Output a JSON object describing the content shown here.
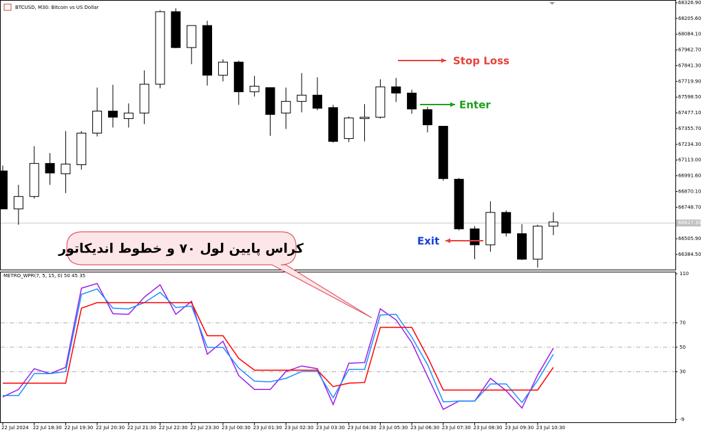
{
  "chart_data": [
    {
      "type": "candlestick",
      "title": "BTCUSD, M30:  Bitcoin vs US Dollar",
      "categories": [
        "22 Jul 2024",
        null,
        "22 Jul 18:30",
        null,
        "22 Jul 19:30",
        null,
        "22 Jul 20:30",
        null,
        "22 Jul 21:30",
        null,
        "22 Jul 22:30",
        null,
        "22 Jul 23:30",
        null,
        "23 Jul 00:30",
        null,
        "23 Jul 01:30",
        null,
        "23 Jul 02:30",
        null,
        "23 Jul 03:30",
        null,
        "23 Jul 04:30",
        null,
        "23 Jul 05:30",
        null,
        "23 Jul 06:30",
        null,
        "23 Jul 07:30",
        null,
        "23 Jul 08:30",
        null,
        "23 Jul 09:30",
        null,
        "23 Jul 10:30",
        null
      ],
      "open": [
        67029,
        66736,
        66832,
        67087,
        67007,
        67077,
        67321,
        67491,
        67433,
        67476,
        67699,
        68258,
        67981,
        68151,
        67768,
        67869,
        67640,
        67672,
        67476,
        67566,
        67614,
        67518,
        67279,
        67433,
        67444,
        67678,
        67630,
        67502,
        67374,
        66965,
        66582,
        66459,
        66709,
        66545,
        66348,
        66603
      ],
      "high": [
        67071,
        66922,
        67220,
        67167,
        67337,
        67337,
        67672,
        67694,
        67550,
        67805,
        68268,
        68284,
        68151,
        68188,
        67891,
        67880,
        67763,
        67672,
        67672,
        67784,
        67752,
        67539,
        67449,
        67545,
        67736,
        67747,
        67656,
        67523,
        67374,
        66975,
        66603,
        66795,
        66725,
        66619,
        66614,
        66709
      ],
      "low": [
        66736,
        66614,
        66816,
        66922,
        66858,
        67039,
        67295,
        67364,
        67364,
        67390,
        67667,
        67976,
        67853,
        67688,
        67720,
        67539,
        67603,
        67300,
        67353,
        67481,
        67497,
        67247,
        67252,
        67257,
        67433,
        67561,
        67470,
        67327,
        66954,
        66571,
        66348,
        66406,
        66523,
        66342,
        66284,
        66534
      ],
      "close": [
        66736,
        66832,
        67087,
        67013,
        67082,
        67321,
        67491,
        67444,
        67476,
        67699,
        68258,
        67981,
        68151,
        67768,
        67869,
        67640,
        67683,
        67465,
        67566,
        67614,
        67513,
        67257,
        67438,
        67444,
        67678,
        67630,
        67507,
        67385,
        66970,
        66582,
        66459,
        66709,
        66550,
        66348,
        66603,
        66635
      ],
      "bull_color": "#ffffff",
      "bear_color": "#000000",
      "ylim": [
        66267.7,
        68348.1
      ],
      "yticks": [
        {
          "value": 68326.9,
          "label": "68326.90"
        },
        {
          "value": 68205.6,
          "label": "68205.60"
        },
        {
          "value": 68084.1,
          "label": "68084.10"
        },
        {
          "value": 67962.7,
          "label": "67962.70"
        },
        {
          "value": 67841.3,
          "label": "67841.30"
        },
        {
          "value": 67719.9,
          "label": "67719.90"
        },
        {
          "value": 67598.5,
          "label": "67598.50"
        },
        {
          "value": 67477.1,
          "label": "67477.10"
        },
        {
          "value": 67355.7,
          "label": "67355.70"
        },
        {
          "value": 67234.3,
          "label": "67234.30"
        },
        {
          "value": 67113.0,
          "label": "67113.00"
        },
        {
          "value": 66991.6,
          "label": "66991.60"
        },
        {
          "value": 66870.1,
          "label": "66870.10"
        },
        {
          "value": 66748.7,
          "label": "66748.70"
        },
        {
          "value": 66505.9,
          "label": "66505.90"
        },
        {
          "value": 66384.5,
          "label": "66384.50"
        }
      ],
      "current_price": {
        "value": 66627.3,
        "label": "66627.30"
      },
      "annotations": [
        {
          "text": "Stop Loss",
          "color": "#e8413a"
        },
        {
          "text": "Enter",
          "color": "#1ea01e"
        },
        {
          "text": "Exit",
          "color": "#1a3fd6"
        },
        {
          "text": "کراس پایین لول ۷۰ و خطوط اندیکاتور",
          "color": "#000000"
        }
      ]
    },
    {
      "type": "line",
      "title": "METRO_WPR(7, 5, 15, 0) 50 45 35",
      "series": [
        {
          "color": "#9b1fe8",
          "values": [
            9.4,
            15.6,
            32.5,
            28.5,
            33.6,
            98.2,
            102.1,
            77.4,
            76.9,
            90.9,
            101,
            76.9,
            87.5,
            44.3,
            54.9,
            26.9,
            15.6,
            15.6,
            30.2,
            34.7,
            32.5,
            3.3,
            37,
            37.5,
            81.3,
            72.4,
            53.8,
            26.3,
            -0.7,
            6.1,
            6.1,
            24.6,
            14.5,
            0.4,
            27.4,
            49.3
          ]
        },
        {
          "color": "#1e90ff",
          "values": [
            10.6,
            10.6,
            28.5,
            28.5,
            30.2,
            93.1,
            97.6,
            81.9,
            81.3,
            86.4,
            94.8,
            82.5,
            83.6,
            49.9,
            49.9,
            33,
            22.4,
            21.8,
            24.6,
            30.2,
            30.2,
            8.9,
            31.9,
            31.9,
            76.3,
            76.9,
            58.3,
            35.8,
            5.5,
            6.1,
            6.1,
            20.1,
            20.1,
            4.9,
            22.9,
            44.3
          ]
        },
        {
          "color": "#ff0000",
          "values": [
            20.7,
            20.7,
            20.7,
            20.7,
            20.7,
            81.9,
            86.4,
            86.4,
            86.4,
            86.4,
            86.4,
            86.4,
            86.4,
            59.4,
            59.4,
            40.9,
            31.3,
            31.3,
            31.3,
            31.3,
            31.3,
            17.9,
            20.7,
            21.2,
            66.2,
            66.2,
            66.2,
            42,
            15.1,
            15.1,
            15.1,
            15.1,
            15.1,
            15.1,
            15.1,
            33.6
          ]
        }
      ],
      "ylim": [
        -9,
        110
      ],
      "yticks": [
        110,
        70,
        50,
        30,
        -9
      ],
      "grid": true
    }
  ]
}
